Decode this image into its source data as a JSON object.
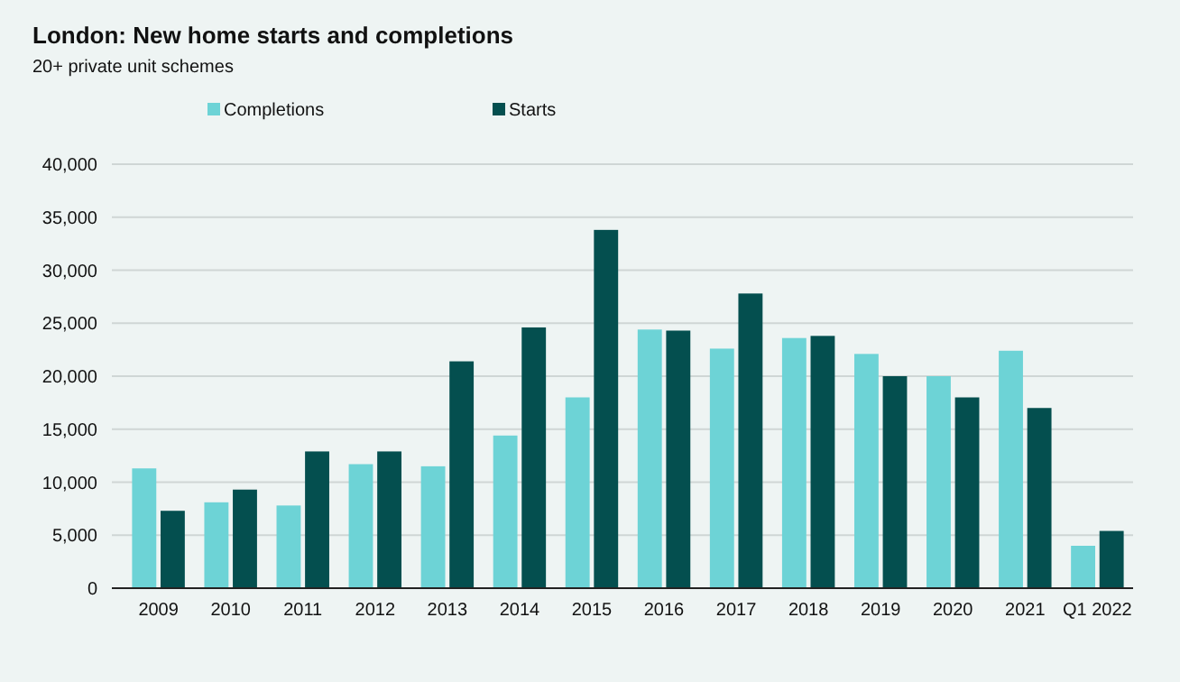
{
  "chart_data": {
    "type": "bar",
    "title": "London:  New home starts and completions",
    "subtitle": "20+ private unit schemes",
    "categories": [
      "2009",
      "2010",
      "2011",
      "2012",
      "2013",
      "2014",
      "2015",
      "2016",
      "2017",
      "2018",
      "2019",
      "2020",
      "2021",
      "Q1 2022"
    ],
    "series": [
      {
        "name": "Completions",
        "color": "#6dd3d6",
        "values": [
          11300,
          8100,
          7800,
          11700,
          11500,
          14400,
          18000,
          24400,
          22600,
          23600,
          22100,
          20000,
          22400,
          4000
        ]
      },
      {
        "name": "Starts",
        "color": "#044f4f",
        "values": [
          7300,
          9300,
          12900,
          12900,
          21400,
          24600,
          33800,
          24300,
          27800,
          23800,
          20000,
          18000,
          17000,
          5400
        ]
      }
    ],
    "ylim": [
      0,
      40000
    ],
    "yticks": [
      {
        "value": 0,
        "label": "0"
      },
      {
        "value": 5000,
        "label": "5,000"
      },
      {
        "value": 10000,
        "label": "10,000"
      },
      {
        "value": 15000,
        "label": "15,000"
      },
      {
        "value": 20000,
        "label": "20,000"
      },
      {
        "value": 25000,
        "label": "25,000"
      },
      {
        "value": 30000,
        "label": "30,000"
      },
      {
        "value": 35000,
        "label": "35,000"
      },
      {
        "value": 40000,
        "label": "40,000"
      }
    ],
    "grid": "y",
    "legend": "top"
  }
}
